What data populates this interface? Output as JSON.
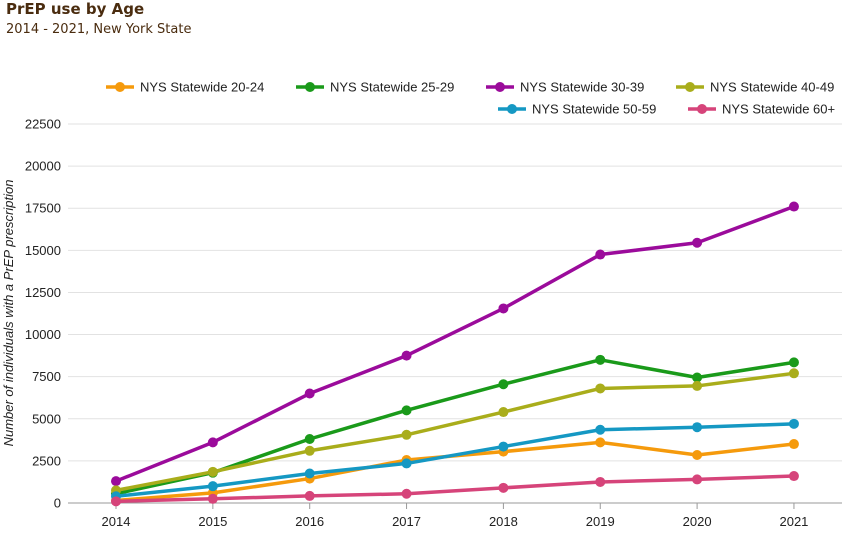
{
  "title": "PrEP use by Age",
  "subtitle": "2014 - 2021, New York State",
  "chart_data": {
    "type": "line",
    "ylabel": "Number of individuals with a PrEP prescription",
    "xlabel": "",
    "x": [
      2014,
      2015,
      2016,
      2017,
      2018,
      2019,
      2020,
      2021
    ],
    "yticks": [
      0,
      2500,
      5000,
      7500,
      10000,
      12500,
      15000,
      17500,
      20000,
      22500
    ],
    "ylim": [
      0,
      22500
    ],
    "grid": true,
    "legend_position": "top",
    "series": [
      {
        "name": "NYS Statewide 20-24",
        "color": "#f59a0c",
        "values": [
          150,
          600,
          1450,
          2550,
          3050,
          3600,
          2850,
          3500
        ]
      },
      {
        "name": "NYS Statewide 25-29",
        "color": "#1a9a1a",
        "values": [
          550,
          1800,
          3800,
          5500,
          7050,
          8500,
          7450,
          8350
        ]
      },
      {
        "name": "NYS Statewide 30-39",
        "color": "#9b0b9b",
        "values": [
          1300,
          3600,
          6500,
          8750,
          11550,
          14750,
          15450,
          17600
        ]
      },
      {
        "name": "NYS Statewide 40-49",
        "color": "#a9ad1b",
        "values": [
          750,
          1850,
          3100,
          4050,
          5400,
          6800,
          6950,
          7700
        ]
      },
      {
        "name": "NYS Statewide 50-59",
        "color": "#1598c3",
        "values": [
          400,
          1000,
          1750,
          2350,
          3350,
          4350,
          4500,
          4700
        ]
      },
      {
        "name": "NYS Statewide 60+",
        "color": "#d6447a",
        "values": [
          100,
          250,
          420,
          550,
          900,
          1250,
          1400,
          1600
        ]
      }
    ]
  }
}
